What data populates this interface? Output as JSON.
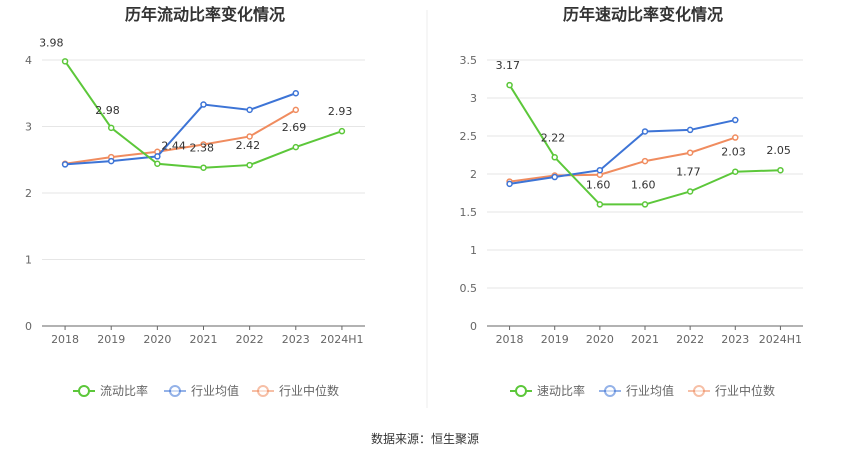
{
  "source": "数据来源：恒生聚源",
  "chart_data": [
    {
      "type": "line",
      "title": "历年流动比率变化情况",
      "categories": [
        "2018",
        "2019",
        "2020",
        "2021",
        "2022",
        "2023",
        "2024H1"
      ],
      "ylim": [
        0,
        4
      ],
      "yticks": [
        "0",
        "1",
        "2",
        "3",
        "4"
      ],
      "ytick_values": [
        0,
        1,
        2,
        3,
        4
      ],
      "grid": true,
      "legend": "bottom",
      "series": [
        {
          "name": "流动比率",
          "color": "#5cc73a",
          "values": [
            3.98,
            2.98,
            2.44,
            2.38,
            2.42,
            2.69,
            2.93
          ],
          "labels": [
            "3.98",
            "2.98",
            "2.44",
            "2.38",
            "2.42",
            "2.69",
            "2.93"
          ]
        },
        {
          "name": "行业均值",
          "color": "#3d74d6",
          "values": [
            2.43,
            2.48,
            2.55,
            3.33,
            3.25,
            3.5,
            null
          ]
        },
        {
          "name": "行业中位数",
          "color": "#f08c5f",
          "values": [
            2.44,
            2.54,
            2.62,
            2.73,
            2.85,
            3.25,
            null
          ]
        }
      ]
    },
    {
      "type": "line",
      "title": "历年速动比率变化情况",
      "categories": [
        "2018",
        "2019",
        "2020",
        "2021",
        "2022",
        "2023",
        "2024H1"
      ],
      "ylim": [
        0,
        3.5
      ],
      "yticks": [
        "0",
        "0.5",
        "1",
        "1.5",
        "2",
        "2.5",
        "3",
        "3.5"
      ],
      "ytick_values": [
        0,
        0.5,
        1,
        1.5,
        2,
        2.5,
        3,
        3.5
      ],
      "grid": true,
      "legend": "bottom",
      "series": [
        {
          "name": "速动比率",
          "color": "#5cc73a",
          "values": [
            3.17,
            2.22,
            1.6,
            1.6,
            1.77,
            2.03,
            2.05
          ],
          "labels": [
            "3.17",
            "2.22",
            "1.60",
            "1.60",
            "1.77",
            "2.03",
            "2.05"
          ]
        },
        {
          "name": "行业均值",
          "color": "#3d74d6",
          "values": [
            1.87,
            1.96,
            2.05,
            2.56,
            2.58,
            2.71,
            null
          ]
        },
        {
          "name": "行业中位数",
          "color": "#f08c5f",
          "values": [
            1.9,
            1.98,
            1.99,
            2.17,
            2.28,
            2.48,
            null
          ]
        }
      ]
    }
  ]
}
